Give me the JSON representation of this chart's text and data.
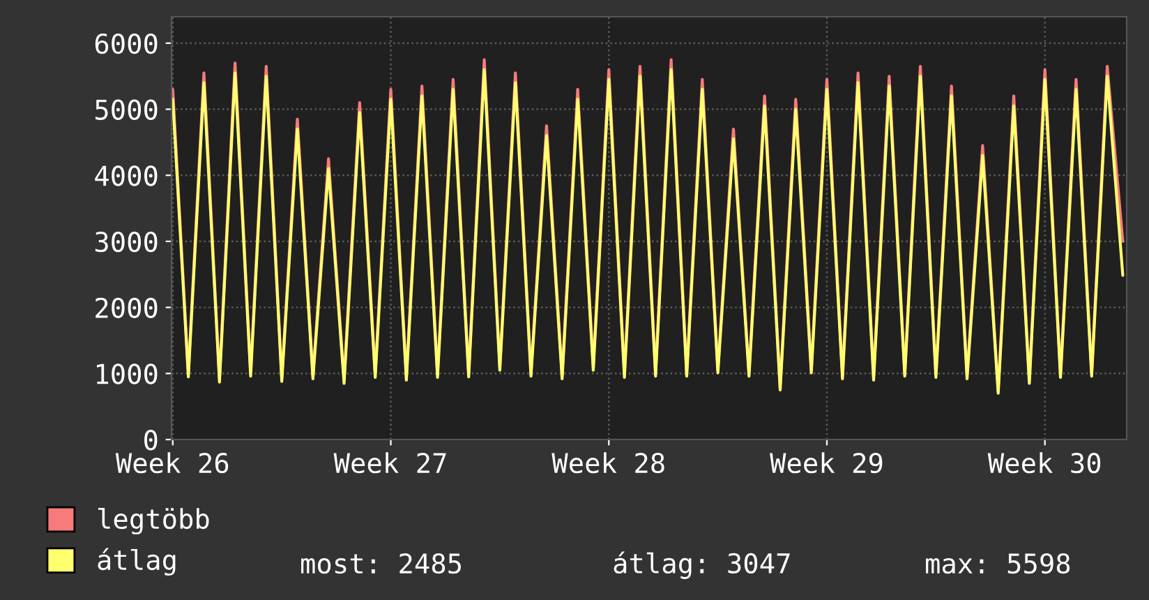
{
  "chart_data": {
    "type": "line",
    "categories": [
      "Week 26",
      null,
      null,
      null,
      null,
      null,
      null,
      null,
      null,
      null,
      null,
      null,
      null,
      null,
      "Week 27",
      null,
      null,
      null,
      null,
      null,
      null,
      null,
      null,
      null,
      null,
      null,
      null,
      null,
      "Week 28",
      null,
      null,
      null,
      null,
      null,
      null,
      null,
      null,
      null,
      null,
      null,
      null,
      null,
      "Week 29",
      null,
      null,
      null,
      null,
      null,
      null,
      null,
      null,
      null,
      null,
      null,
      null,
      null,
      "Week 30",
      null,
      null,
      null,
      null,
      null
    ],
    "series": [
      {
        "name": "legtöbb",
        "color": "#f77b7b",
        "values": [
          5300,
          1000,
          5550,
          920,
          5700,
          1010,
          5650,
          930,
          4850,
          970,
          4250,
          900,
          5100,
          990,
          5300,
          950,
          5350,
          990,
          5450,
          1000,
          5750,
          1100,
          5550,
          1010,
          4750,
          970,
          5300,
          1100,
          5600,
          990,
          5650,
          1010,
          5750,
          1010,
          5450,
          1060,
          4700,
          1010,
          5200,
          800,
          5150,
          1060,
          5450,
          970,
          5550,
          950,
          5500,
          1010,
          5650,
          990,
          5350,
          970,
          4450,
          740,
          5200,
          900,
          5600,
          990,
          5450,
          1010,
          5650,
          3000
        ]
      },
      {
        "name": "átlag",
        "color": "#ffff70",
        "values": [
          5150,
          950,
          5400,
          870,
          5550,
          960,
          5500,
          880,
          4700,
          920,
          4100,
          850,
          4950,
          940,
          5150,
          900,
          5200,
          940,
          5300,
          950,
          5600,
          1050,
          5400,
          960,
          4600,
          920,
          5150,
          1050,
          5450,
          940,
          5500,
          960,
          5600,
          960,
          5300,
          1010,
          4550,
          960,
          5050,
          750,
          5000,
          1010,
          5300,
          920,
          5400,
          900,
          5350,
          960,
          5500,
          940,
          5200,
          920,
          4300,
          700,
          5050,
          850,
          5450,
          940,
          5300,
          960,
          5500,
          2485
        ]
      }
    ],
    "ylim": [
      0,
      6400
    ],
    "yticks": [
      0,
      1000,
      2000,
      3000,
      4000,
      5000,
      6000
    ],
    "grid": true,
    "legend": "bottom left",
    "line_style": "solid",
    "annotations": [
      "most: 2485",
      "átlag: 3047",
      "max: 5598"
    ]
  }
}
